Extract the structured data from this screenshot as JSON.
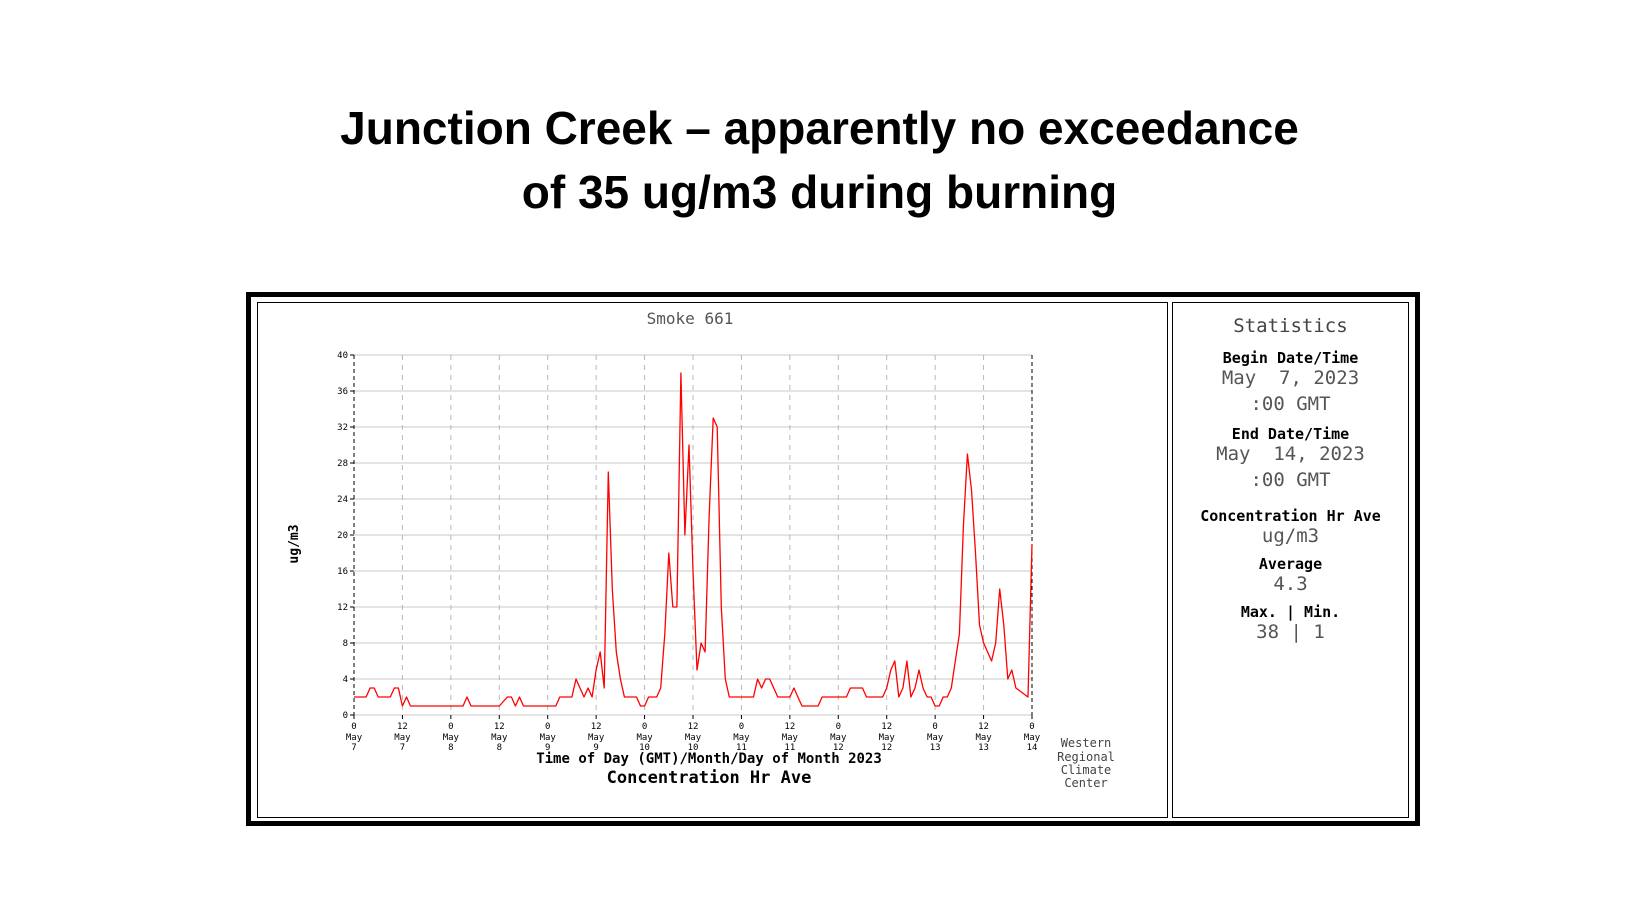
{
  "slide": {
    "title_line1": "Junction Creek – apparently no exceedance",
    "title_line2": "of 35 ug/m3 during burning"
  },
  "credit": [
    "Western",
    "Regional",
    "Climate",
    "Center"
  ],
  "statistics": {
    "heading": "Statistics",
    "begin_label": "Begin Date/Time",
    "begin_date": "May  7, 2023",
    "begin_time": ":00 GMT",
    "end_label": "End Date/Time",
    "end_date": "May  14, 2023",
    "end_time": ":00 GMT",
    "param_label": "Concentration Hr Ave",
    "units": "ug/m3",
    "avg_label": "Average",
    "avg_value": "4.3",
    "maxmin_label": "Max. | Min.",
    "maxmin_value": "38 | 1"
  },
  "chart_data": {
    "type": "line",
    "title": "Smoke 661",
    "ylabel": "ug/m3",
    "xlabel": "Time of Day (GMT)/Month/Day of Month 2023",
    "xlabel2": "Concentration Hr Ave",
    "ylim": [
      0,
      40
    ],
    "yticks": [
      0,
      4,
      8,
      12,
      16,
      20,
      24,
      28,
      32,
      36,
      40
    ],
    "xlim": [
      "2023-05-07 00:00",
      "2023-05-14 00:00"
    ],
    "xticks": [
      {
        "hour": "0",
        "month": "May",
        "day": "7"
      },
      {
        "hour": "12",
        "month": "May",
        "day": "7"
      },
      {
        "hour": "0",
        "month": "May",
        "day": "8"
      },
      {
        "hour": "12",
        "month": "May",
        "day": "8"
      },
      {
        "hour": "0",
        "month": "May",
        "day": "9"
      },
      {
        "hour": "12",
        "month": "May",
        "day": "9"
      },
      {
        "hour": "0",
        "month": "May",
        "day": "10"
      },
      {
        "hour": "12",
        "month": "May",
        "day": "10"
      },
      {
        "hour": "0",
        "month": "May",
        "day": "11"
      },
      {
        "hour": "12",
        "month": "May",
        "day": "11"
      },
      {
        "hour": "0",
        "month": "May",
        "day": "12"
      },
      {
        "hour": "12",
        "month": "May",
        "day": "12"
      },
      {
        "hour": "0",
        "month": "May",
        "day": "13"
      },
      {
        "hour": "12",
        "month": "May",
        "day": "13"
      },
      {
        "hour": "0",
        "month": "May",
        "day": "14"
      }
    ],
    "grid": true,
    "color": "#ff0000",
    "series": [
      {
        "values": [
          [
            "2023-05-07 00:00",
            2
          ],
          [
            "2023-05-07 03:00",
            2
          ],
          [
            "2023-05-07 04:00",
            3
          ],
          [
            "2023-05-07 05:00",
            3
          ],
          [
            "2023-05-07 06:00",
            2
          ],
          [
            "2023-05-07 09:00",
            2
          ],
          [
            "2023-05-07 10:00",
            3
          ],
          [
            "2023-05-07 11:00",
            3
          ],
          [
            "2023-05-07 12:00",
            1
          ],
          [
            "2023-05-07 13:00",
            2
          ],
          [
            "2023-05-07 14:00",
            1
          ],
          [
            "2023-05-08 03:00",
            1
          ],
          [
            "2023-05-08 04:00",
            2
          ],
          [
            "2023-05-08 05:00",
            1
          ],
          [
            "2023-05-08 12:00",
            1
          ],
          [
            "2023-05-08 14:00",
            2
          ],
          [
            "2023-05-08 15:00",
            2
          ],
          [
            "2023-05-08 16:00",
            1
          ],
          [
            "2023-05-08 17:00",
            2
          ],
          [
            "2023-05-08 18:00",
            1
          ],
          [
            "2023-05-09 02:00",
            1
          ],
          [
            "2023-05-09 03:00",
            2
          ],
          [
            "2023-05-09 06:00",
            2
          ],
          [
            "2023-05-09 07:00",
            4
          ],
          [
            "2023-05-09 08:00",
            3
          ],
          [
            "2023-05-09 09:00",
            2
          ],
          [
            "2023-05-09 10:00",
            3
          ],
          [
            "2023-05-09 11:00",
            2
          ],
          [
            "2023-05-09 12:00",
            5
          ],
          [
            "2023-05-09 13:00",
            7
          ],
          [
            "2023-05-09 14:00",
            3
          ],
          [
            "2023-05-09 15:00",
            27
          ],
          [
            "2023-05-09 16:00",
            14
          ],
          [
            "2023-05-09 17:00",
            7
          ],
          [
            "2023-05-09 18:00",
            4
          ],
          [
            "2023-05-09 19:00",
            2
          ],
          [
            "2023-05-09 22:00",
            2
          ],
          [
            "2023-05-09 23:00",
            1
          ],
          [
            "2023-05-10 00:00",
            1
          ],
          [
            "2023-05-10 01:00",
            2
          ],
          [
            "2023-05-10 03:00",
            2
          ],
          [
            "2023-05-10 04:00",
            3
          ],
          [
            "2023-05-10 05:00",
            9
          ],
          [
            "2023-05-10 06:00",
            18
          ],
          [
            "2023-05-10 07:00",
            12
          ],
          [
            "2023-05-10 08:00",
            12
          ],
          [
            "2023-05-10 09:00",
            38
          ],
          [
            "2023-05-10 10:00",
            20
          ],
          [
            "2023-05-10 11:00",
            30
          ],
          [
            "2023-05-10 12:00",
            16
          ],
          [
            "2023-05-10 13:00",
            5
          ],
          [
            "2023-05-10 14:00",
            8
          ],
          [
            "2023-05-10 15:00",
            7
          ],
          [
            "2023-05-10 16:00",
            22
          ],
          [
            "2023-05-10 17:00",
            33
          ],
          [
            "2023-05-10 18:00",
            32
          ],
          [
            "2023-05-10 19:00",
            12
          ],
          [
            "2023-05-10 20:00",
            4
          ],
          [
            "2023-05-10 21:00",
            2
          ],
          [
            "2023-05-11 02:00",
            2
          ],
          [
            "2023-05-11 03:00",
            2
          ],
          [
            "2023-05-11 04:00",
            4
          ],
          [
            "2023-05-11 05:00",
            3
          ],
          [
            "2023-05-11 06:00",
            4
          ],
          [
            "2023-05-11 07:00",
            4
          ],
          [
            "2023-05-11 08:00",
            3
          ],
          [
            "2023-05-11 09:00",
            2
          ],
          [
            "2023-05-11 12:00",
            2
          ],
          [
            "2023-05-11 13:00",
            3
          ],
          [
            "2023-05-11 14:00",
            2
          ],
          [
            "2023-05-11 15:00",
            1
          ],
          [
            "2023-05-11 19:00",
            1
          ],
          [
            "2023-05-11 20:00",
            2
          ],
          [
            "2023-05-12 02:00",
            2
          ],
          [
            "2023-05-12 03:00",
            3
          ],
          [
            "2023-05-12 06:00",
            3
          ],
          [
            "2023-05-12 07:00",
            2
          ],
          [
            "2023-05-12 11:00",
            2
          ],
          [
            "2023-05-12 12:00",
            3
          ],
          [
            "2023-05-12 13:00",
            5
          ],
          [
            "2023-05-12 14:00",
            6
          ],
          [
            "2023-05-12 15:00",
            2
          ],
          [
            "2023-05-12 16:00",
            3
          ],
          [
            "2023-05-12 17:00",
            6
          ],
          [
            "2023-05-12 18:00",
            2
          ],
          [
            "2023-05-12 19:00",
            3
          ],
          [
            "2023-05-12 20:00",
            5
          ],
          [
            "2023-05-12 21:00",
            3
          ],
          [
            "2023-05-12 22:00",
            2
          ],
          [
            "2023-05-12 23:00",
            2
          ],
          [
            "2023-05-13 00:00",
            1
          ],
          [
            "2023-05-13 01:00",
            1
          ],
          [
            "2023-05-13 02:00",
            2
          ],
          [
            "2023-05-13 03:00",
            2
          ],
          [
            "2023-05-13 04:00",
            3
          ],
          [
            "2023-05-13 05:00",
            6
          ],
          [
            "2023-05-13 06:00",
            9
          ],
          [
            "2023-05-13 07:00",
            21
          ],
          [
            "2023-05-13 08:00",
            29
          ],
          [
            "2023-05-13 09:00",
            25
          ],
          [
            "2023-05-13 10:00",
            18
          ],
          [
            "2023-05-13 11:00",
            10
          ],
          [
            "2023-05-13 12:00",
            8
          ],
          [
            "2023-05-13 13:00",
            7
          ],
          [
            "2023-05-13 14:00",
            6
          ],
          [
            "2023-05-13 15:00",
            8
          ],
          [
            "2023-05-13 16:00",
            14
          ],
          [
            "2023-05-13 17:00",
            10
          ],
          [
            "2023-05-13 18:00",
            4
          ],
          [
            "2023-05-13 19:00",
            5
          ],
          [
            "2023-05-13 20:00",
            3
          ],
          [
            "2023-05-13 23:00",
            2
          ],
          [
            "2023-05-14 00:00",
            19
          ]
        ]
      }
    ]
  }
}
